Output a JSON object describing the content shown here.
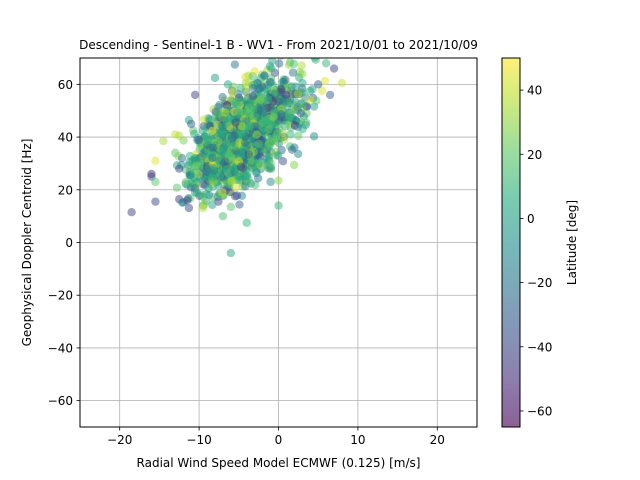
{
  "chart_data": {
    "type": "scatter",
    "title": "Descending - Sentinel-1 B - WV1 - From 2021/10/01 to 2021/10/09",
    "xlabel": "Radial Wind Speed Model ECMWF (0.125) [m/s]",
    "ylabel": "Geophysical Doppler Centroid [Hz]",
    "xlim": [
      -25,
      25
    ],
    "ylim": [
      -70,
      70
    ],
    "xticks": [
      -20,
      -10,
      0,
      10,
      20
    ],
    "yticks": [
      -60,
      -40,
      -20,
      0,
      20,
      40,
      60
    ],
    "xtick_labels": [
      "−20",
      "−10",
      "0",
      "10",
      "20"
    ],
    "ytick_labels": [
      "−60",
      "−40",
      "−20",
      "0",
      "20",
      "40",
      "60"
    ],
    "grid": true,
    "colormap": "viridis",
    "marker_alpha": 0.5,
    "colorbar": {
      "label": "Latitude [deg]",
      "range": [
        -65,
        50
      ],
      "ticks": [
        -60,
        -40,
        -20,
        0,
        20,
        40
      ],
      "tick_labels": [
        "−60",
        "−40",
        "−20",
        "0",
        "20",
        "40"
      ]
    },
    "points": [
      {
        "x": -18.5,
        "y": 11.5,
        "lat": -40
      },
      {
        "x": -15.5,
        "y": 15.5,
        "lat": -40
      },
      {
        "x": -16.0,
        "y": 26.0,
        "lat": -50
      },
      {
        "x": -16.0,
        "y": 25.0,
        "lat": -40
      },
      {
        "x": -15.5,
        "y": 31.0,
        "lat": 45
      },
      {
        "x": -15.5,
        "y": 23.0,
        "lat": 20
      },
      {
        "x": -14.5,
        "y": 38.5,
        "lat": 35
      },
      {
        "x": -13.0,
        "y": 41.0,
        "lat": 40
      },
      {
        "x": -12.5,
        "y": 40.5,
        "lat": 35
      },
      {
        "x": -6.0,
        "y": -4.0,
        "lat": 5
      },
      {
        "x": -4.0,
        "y": 7.5,
        "lat": 10
      },
      {
        "x": 0.0,
        "y": 14.0,
        "lat": 10
      },
      {
        "x": 0.0,
        "y": 23.5,
        "lat": 30
      },
      {
        "x": -1.0,
        "y": 23.0,
        "lat": -10
      },
      {
        "x": -7.0,
        "y": 10.0,
        "lat": 15
      },
      {
        "x": -9.5,
        "y": 13.0,
        "lat": 40
      },
      {
        "x": -6.0,
        "y": 13.5,
        "lat": 20
      },
      {
        "x": 6.5,
        "y": 56.0,
        "lat": -30
      },
      {
        "x": 8.0,
        "y": 60.5,
        "lat": 40
      },
      {
        "x": 7.0,
        "y": 66.0,
        "lat": -40
      },
      {
        "x": 6.0,
        "y": 68.0,
        "lat": 10
      },
      {
        "x": 2.5,
        "y": 40.5,
        "lat": 20
      },
      {
        "x": 1.5,
        "y": 41.0,
        "lat": 10
      },
      {
        "x": 3.5,
        "y": 45.5,
        "lat": 15
      },
      {
        "x": 2.0,
        "y": 36.0,
        "lat": -20
      },
      {
        "x": -2.5,
        "y": 30.0,
        "lat": 10
      },
      {
        "x": -1.0,
        "y": 30.0,
        "lat": 20
      },
      {
        "x": -11.0,
        "y": 45.0,
        "lat": -30
      },
      {
        "x": -10.5,
        "y": 56.0,
        "lat": -40
      },
      {
        "x": -8.0,
        "y": 62.5,
        "lat": 0
      },
      {
        "x": -5.5,
        "y": 67.5,
        "lat": -20
      },
      {
        "x": -12.5,
        "y": 28.0,
        "lat": -40
      },
      {
        "x": -13.0,
        "y": 34.0,
        "lat": 20
      },
      {
        "x": -11.5,
        "y": 16.0,
        "lat": -40
      },
      {
        "x": -10.5,
        "y": 19.0,
        "lat": 0
      },
      {
        "x": 4.0,
        "y": 54.0,
        "lat": 40
      },
      {
        "x": 5.0,
        "y": 60.0,
        "lat": -30
      },
      {
        "x": 3.0,
        "y": 64.0,
        "lat": 30
      },
      {
        "x": -3.0,
        "y": 65.0,
        "lat": 45
      }
    ],
    "cluster": {
      "description_none": "",
      "count": 1400,
      "x_center": -4.5,
      "y_intercept": 49,
      "slope": 2.0,
      "x_spread": 3.3,
      "y_spread": 8.5,
      "seed": 7
    }
  }
}
